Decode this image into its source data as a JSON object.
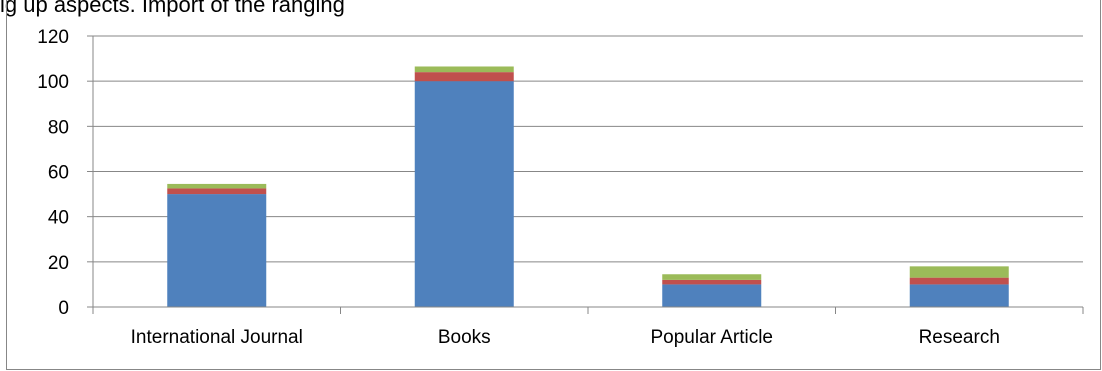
{
  "caption": "ig up aspects. Import of the ranging",
  "chart_data": {
    "type": "bar",
    "stacked": true,
    "categories": [
      "International Journal",
      "Books",
      "Popular Article",
      "Research"
    ],
    "series": [
      {
        "values": [
          50,
          100,
          10,
          10
        ],
        "color": "#4F81BD"
      },
      {
        "values": [
          2.5,
          4,
          2,
          3
        ],
        "color": "#C0504D"
      },
      {
        "values": [
          2,
          2.5,
          2.5,
          5
        ],
        "color": "#9BBB59"
      }
    ],
    "ylim": [
      0,
      120
    ],
    "yticks": [
      0,
      20,
      40,
      60,
      80,
      100,
      120
    ],
    "grid": true,
    "legend": "none",
    "title": "",
    "xlabel": "",
    "ylabel": ""
  }
}
